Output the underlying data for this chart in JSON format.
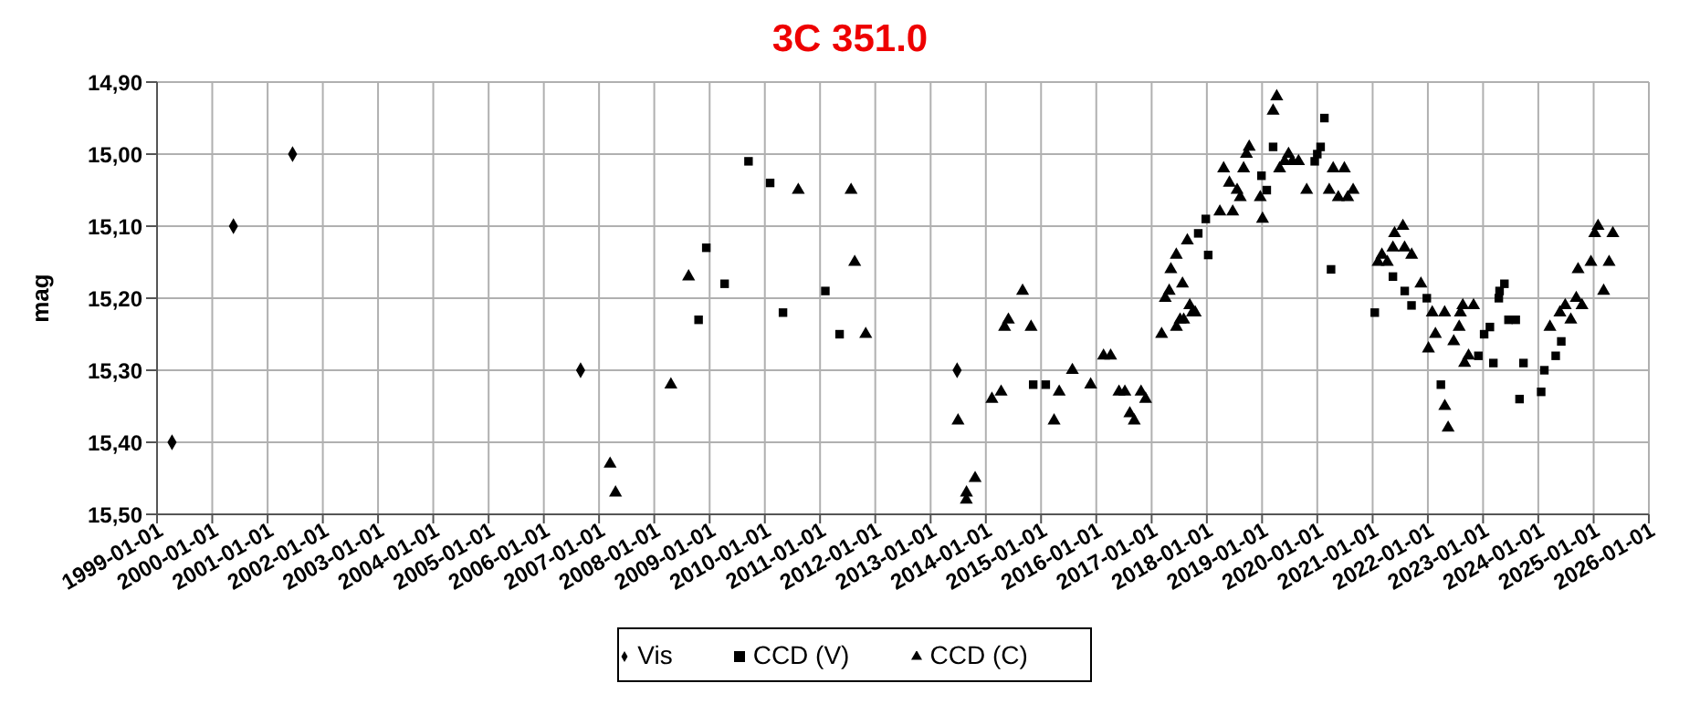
{
  "chart_data": {
    "type": "scatter",
    "title": "3C 351.0",
    "ylabel": "mag",
    "xlim": [
      "1999-01-01",
      "2026-01-01"
    ],
    "xticks": [
      "1999-01-01",
      "2000-01-01",
      "2001-01-01",
      "2002-01-01",
      "2003-01-01",
      "2004-01-01",
      "2005-01-01",
      "2006-01-01",
      "2007-01-01",
      "2008-01-01",
      "2009-01-01",
      "2010-01-01",
      "2011-01-01",
      "2012-01-01",
      "2013-01-01",
      "2014-01-01",
      "2015-01-01",
      "2016-01-01",
      "2017-01-01",
      "2018-01-01",
      "2019-01-01",
      "2020-01-01",
      "2021-01-01",
      "2022-01-01",
      "2023-01-01",
      "2024-01-01",
      "2025-01-01",
      "2026-01-01"
    ],
    "ylim": [
      15.5,
      14.9
    ],
    "yticks": [
      {
        "value": 14.9,
        "label": "14,90"
      },
      {
        "value": 15.0,
        "label": "15,00"
      },
      {
        "value": 15.1,
        "label": "15,10"
      },
      {
        "value": 15.2,
        "label": "15,20"
      },
      {
        "value": 15.3,
        "label": "15,30"
      },
      {
        "value": 15.4,
        "label": "15,40"
      },
      {
        "value": 15.5,
        "label": "15,50"
      }
    ],
    "grid": true,
    "legend": "bottom",
    "series": [
      {
        "name": "Vis",
        "color": "#000000",
        "marker": "diamond",
        "x": [
          "1999-04-10",
          "2000-05-20",
          "2001-06-15",
          "2006-09-01",
          "2013-06-25"
        ],
        "values": [
          15.4,
          15.1,
          15.0,
          15.3,
          15.3
        ]
      },
      {
        "name": "CCD (V)",
        "color": "#000000",
        "marker": "square",
        "x": [
          "2008-10-20",
          "2008-12-10",
          "2009-04-10",
          "2009-09-15",
          "2010-02-05",
          "2010-05-01",
          "2011-02-05",
          "2011-05-10",
          "2014-11-10",
          "2015-02-01",
          "2017-11-05",
          "2017-12-25",
          "2018-01-10",
          "2018-12-28",
          "2019-02-01",
          "2019-03-15",
          "2019-12-15",
          "2020-01-01",
          "2020-01-23",
          "2020-02-17",
          "2020-04-01",
          "2021-01-15",
          "2021-05-15",
          "2021-08-01",
          "2021-09-15",
          "2021-12-25",
          "2022-03-28",
          "2022-12-01",
          "2023-01-08",
          "2023-02-15",
          "2023-03-10",
          "2023-04-15",
          "2023-04-20",
          "2023-05-22",
          "2023-06-18",
          "2023-08-05",
          "2023-08-30",
          "2023-09-25",
          "2024-01-20",
          "2024-02-10",
          "2024-04-25",
          "2024-06-01"
        ],
        "values": [
          15.23,
          15.13,
          15.18,
          15.01,
          15.04,
          15.22,
          15.19,
          15.25,
          15.32,
          15.32,
          15.11,
          15.09,
          15.14,
          15.03,
          15.05,
          14.99,
          15.01,
          15.0,
          14.99,
          14.95,
          15.16,
          15.22,
          15.17,
          15.19,
          15.21,
          15.2,
          15.32,
          15.28,
          15.25,
          15.24,
          15.29,
          15.2,
          15.19,
          15.18,
          15.23,
          15.23,
          15.34,
          15.29,
          15.33,
          15.3,
          15.28,
          15.26
        ]
      },
      {
        "name": "CCD (C)",
        "color": "#000000",
        "marker": "triangle",
        "x": [
          "2007-03-15",
          "2007-04-20",
          "2008-04-20",
          "2008-08-15",
          "2010-08-10",
          "2011-07-25",
          "2011-08-18",
          "2011-10-30",
          "2013-07-01",
          "2013-08-25",
          "2013-08-26",
          "2013-10-22",
          "2014-02-10",
          "2014-04-12",
          "2014-05-05",
          "2014-05-30",
          "2014-09-01",
          "2014-10-27",
          "2015-03-28",
          "2015-05-01",
          "2015-07-27",
          "2015-11-25",
          "2016-02-18",
          "2016-04-05",
          "2016-05-30",
          "2016-07-08",
          "2016-08-10",
          "2016-09-08",
          "2016-10-23",
          "2016-11-22",
          "2017-03-08",
          "2017-04-01",
          "2017-04-27",
          "2017-05-08",
          "2017-06-13",
          "2017-06-14",
          "2017-07-08",
          "2017-07-24",
          "2017-08-01",
          "2017-08-25",
          "2017-09-10",
          "2017-09-28",
          "2017-10-16",
          "2018-03-28",
          "2018-04-22",
          "2018-05-30",
          "2018-06-21",
          "2018-07-20",
          "2018-08-10",
          "2018-09-01",
          "2018-09-20",
          "2018-10-08",
          "2018-12-20",
          "2019-01-04",
          "2019-03-15",
          "2019-04-08",
          "2019-04-27",
          "2019-05-30",
          "2019-06-25",
          "2019-07-20",
          "2019-08-30",
          "2019-10-23",
          "2020-03-20",
          "2020-04-15",
          "2020-05-19",
          "2020-06-28",
          "2020-07-20",
          "2020-08-25",
          "2021-02-06",
          "2021-03-03",
          "2021-04-08",
          "2021-05-15",
          "2021-05-26",
          "2021-07-20",
          "2021-07-31",
          "2021-09-16",
          "2021-11-16",
          "2022-01-05",
          "2022-01-30",
          "2022-02-20",
          "2022-04-22",
          "2022-04-23",
          "2022-05-15",
          "2022-06-21",
          "2022-07-27",
          "2022-08-04",
          "2022-08-20",
          "2022-09-01",
          "2022-09-27",
          "2022-10-30",
          "2024-03-18",
          "2024-05-23",
          "2024-06-27",
          "2024-08-03",
          "2024-09-08",
          "2024-09-20",
          "2024-10-16",
          "2024-12-14",
          "2025-01-08",
          "2025-01-30",
          "2025-03-08",
          "2025-04-13",
          "2025-05-08"
        ],
        "values": [
          15.43,
          15.47,
          15.32,
          15.17,
          15.05,
          15.05,
          15.15,
          15.25,
          15.37,
          15.48,
          15.47,
          15.45,
          15.34,
          15.33,
          15.24,
          15.23,
          15.19,
          15.24,
          15.37,
          15.33,
          15.3,
          15.32,
          15.28,
          15.28,
          15.33,
          15.33,
          15.36,
          15.37,
          15.33,
          15.34,
          15.25,
          15.2,
          15.19,
          15.16,
          15.14,
          15.24,
          15.23,
          15.18,
          15.23,
          15.12,
          15.21,
          15.22,
          15.22,
          15.08,
          15.02,
          15.04,
          15.08,
          15.05,
          15.06,
          15.02,
          15.0,
          14.99,
          15.06,
          15.09,
          14.94,
          14.92,
          15.02,
          15.01,
          15.0,
          15.01,
          15.01,
          15.05,
          15.05,
          15.02,
          15.06,
          15.02,
          15.06,
          15.05,
          15.15,
          15.14,
          15.15,
          15.13,
          15.11,
          15.1,
          15.13,
          15.14,
          15.18,
          15.27,
          15.22,
          15.25,
          15.22,
          15.35,
          15.38,
          15.26,
          15.24,
          15.22,
          15.21,
          15.29,
          15.28,
          15.21,
          15.24,
          15.22,
          15.21,
          15.23,
          15.2,
          15.16,
          15.21,
          15.15,
          15.11,
          15.1,
          15.19,
          15.15,
          15.11
        ]
      }
    ]
  }
}
